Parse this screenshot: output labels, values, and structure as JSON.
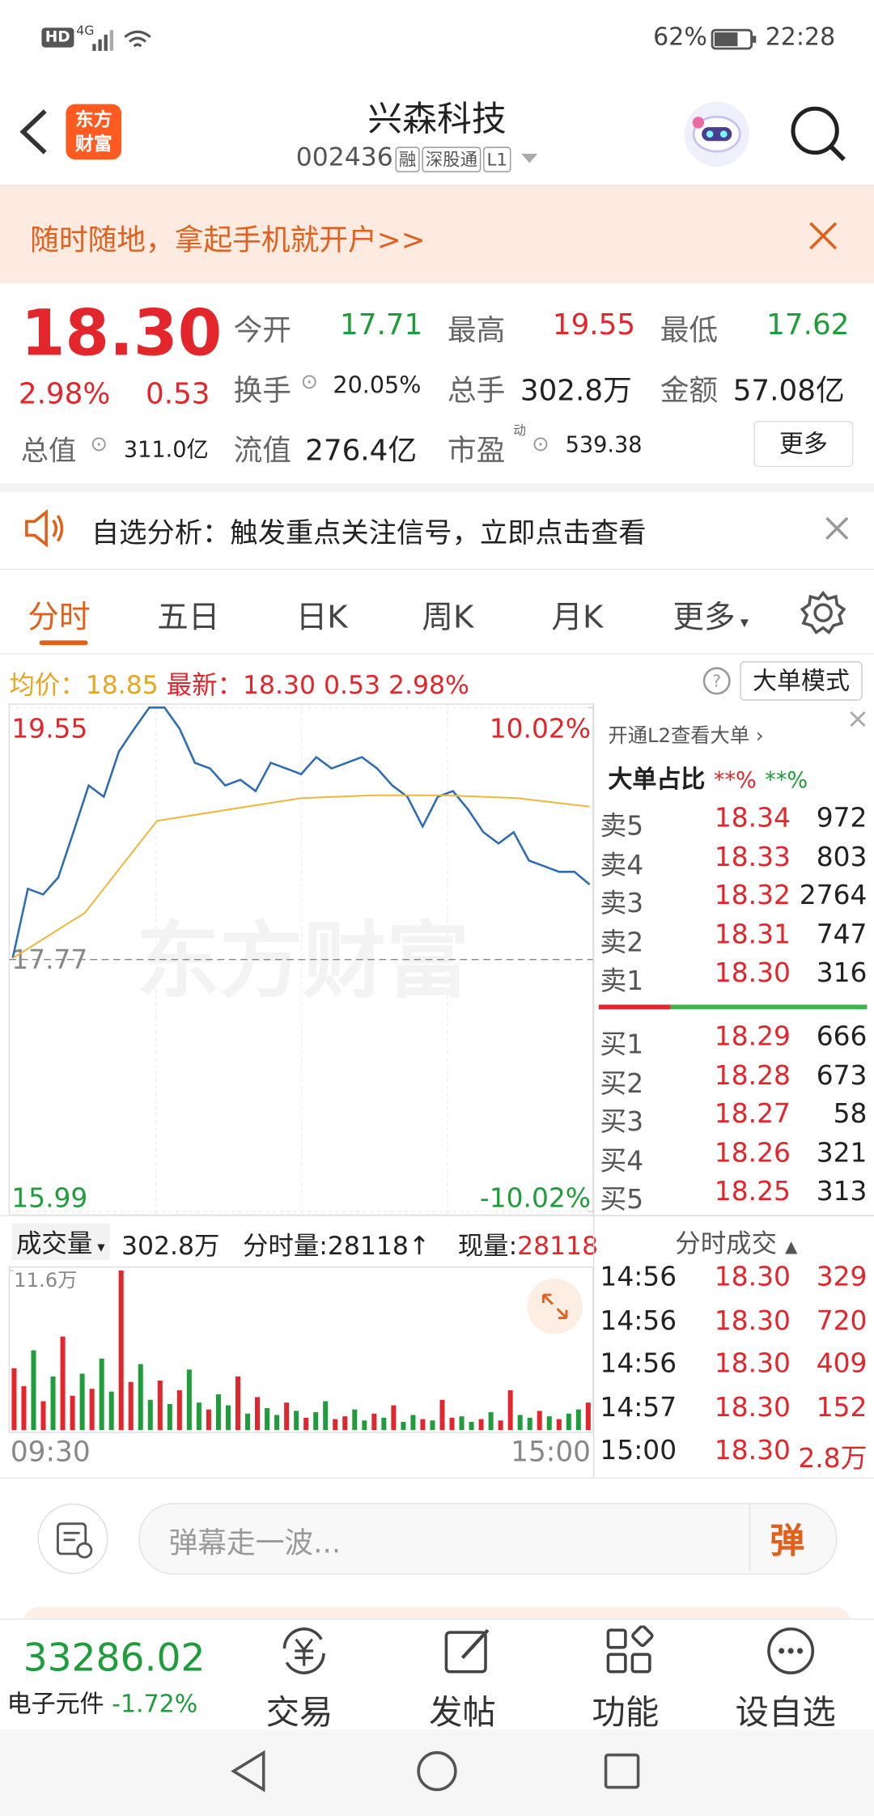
{
  "status_bar": {
    "hd": "HD",
    "network": "4G",
    "battery": "62%",
    "time": "22:28"
  },
  "header": {
    "logo_lines": [
      "东方",
      "财富"
    ],
    "title": "兴森科技",
    "code": "002436",
    "tags": [
      "融",
      "深股通",
      "L1"
    ]
  },
  "banner": {
    "text": "随时随地，拿起手机就开户>>"
  },
  "quote": {
    "price": "18.30",
    "change_pct": "2.98%",
    "change": "0.53",
    "fields": [
      {
        "label": "今开",
        "value": "17.71"
      },
      {
        "label": "最高",
        "value": "19.55"
      },
      {
        "label": "最低",
        "value": "17.62"
      },
      {
        "label": "换手",
        "value": "20.05%"
      },
      {
        "label": "总手",
        "value": "302.8万"
      },
      {
        "label": "金额",
        "value": "57.08亿"
      },
      {
        "label": "总值",
        "value": "311.0亿"
      },
      {
        "label": "流值",
        "value": "276.4亿"
      },
      {
        "label": "市盈",
        "value": "539.38"
      }
    ],
    "pe_mark": "动",
    "more": "更多"
  },
  "notice": {
    "text": "自选分析：触发重点关注信号，立即点击查看"
  },
  "tabs": [
    "分时",
    "五日",
    "日K",
    "周K",
    "月K",
    "更多"
  ],
  "info_line": {
    "avg_label": "均价：",
    "avg": "18.85",
    "latest_label": "最新：",
    "latest": "18.30",
    "change": "0.53",
    "change_pct": "2.98%",
    "mode": "大单模式"
  },
  "chart_data": [
    {
      "type": "line",
      "ylim": [
        15.99,
        19.55
      ],
      "yticks": [
        19.55,
        17.77,
        15.99
      ],
      "y2lim": [
        -10.02,
        10.02
      ],
      "y2ticks": [
        {
          "value": 10.02,
          "label": "10.02%"
        },
        {
          "value": -10.02,
          "label": "-10.02%"
        }
      ],
      "xticks": [
        "09:30",
        "15:00"
      ],
      "watermark": "东方财富",
      "series": [
        {
          "color": "#2f6db3",
          "values": [
            17.78,
            18.27,
            18.23,
            18.35,
            18.67,
            19.0,
            18.92,
            19.24,
            19.4,
            19.55,
            19.55,
            19.4,
            19.16,
            19.12,
            19.0,
            19.04,
            18.96,
            19.16,
            19.12,
            19.08,
            19.2,
            19.12,
            19.16,
            19.2,
            19.12,
            19.0,
            18.92,
            18.71,
            18.92,
            18.96,
            18.83,
            18.67,
            18.59,
            18.67,
            18.47,
            18.43,
            18.39,
            18.39,
            18.3
          ]
        },
        {
          "color": "#f0b63c",
          "values": [
            17.78,
            18.1,
            18.75,
            18.83,
            18.91,
            18.93,
            18.93,
            18.91,
            18.85
          ]
        }
      ]
    },
    {
      "type": "bar",
      "ylim": [
        0,
        11.6
      ],
      "yticks": [
        {
          "value": 11.6,
          "label": "11.6万"
        }
      ],
      "values": [
        4.5,
        3.2,
        5.8,
        2.1,
        3.9,
        6.8,
        2.5,
        4.1,
        3.0,
        5.2,
        2.8,
        11.6,
        3.5,
        4.8,
        2.2,
        3.6,
        1.9,
        2.9,
        4.4,
        2.0,
        1.5,
        2.6,
        1.8,
        3.9,
        1.2,
        2.4,
        1.6,
        1.1,
        2.0,
        1.4,
        0.9,
        1.3,
        2.1,
        0.8,
        1.0,
        1.5,
        0.7,
        1.2,
        0.9,
        1.8,
        0.6,
        1.1,
        0.8,
        0.7,
        2.2,
        0.9,
        1.0,
        0.6,
        0.8,
        1.3,
        0.7,
        2.9,
        1.1,
        0.9,
        1.4,
        1.0,
        0.8,
        1.2,
        1.5,
        2.0
      ],
      "colors": [
        "#e3262c",
        "#e3262c",
        "#1f9d3a",
        "#e3262c",
        "#1f9d3a",
        "#e3262c",
        "#e3262c",
        "#1f9d3a",
        "#e3262c",
        "#1f9d3a",
        "#1f9d3a",
        "#e3262c",
        "#e3262c",
        "#1f9d3a",
        "#1f9d3a",
        "#e3262c",
        "#1f9d3a",
        "#e3262c",
        "#1f9d3a",
        "#1f9d3a",
        "#e3262c",
        "#1f9d3a",
        "#1f9d3a",
        "#e3262c",
        "#1f9d3a",
        "#e3262c",
        "#1f9d3a",
        "#1f9d3a",
        "#e3262c",
        "#1f9d3a",
        "#e3262c",
        "#1f9d3a",
        "#1f9d3a",
        "#e3262c",
        "#e3262c",
        "#1f9d3a",
        "#1f9d3a",
        "#e3262c",
        "#1f9d3a",
        "#e3262c",
        "#1f9d3a",
        "#1f9d3a",
        "#e3262c",
        "#1f9d3a",
        "#e3262c",
        "#e3262c",
        "#1f9d3a",
        "#1f9d3a",
        "#e3262c",
        "#1f9d3a",
        "#e3262c",
        "#e3262c",
        "#1f9d3a",
        "#1f9d3a",
        "#e3262c",
        "#1f9d3a",
        "#e3262c",
        "#1f9d3a",
        "#1f9d3a",
        "#e3262c"
      ]
    }
  ],
  "volume_header": {
    "selector": "成交量",
    "total": "302.8万",
    "minute_label": "分时量:",
    "minute": "28118↑",
    "current_label": "现量:",
    "current": "28118"
  },
  "order_book": {
    "link": "开通L2查看大单",
    "big_order_label": "大单占比",
    "big_a": "**%",
    "big_b": "**%",
    "asks": [
      [
        "卖5",
        "18.34",
        "972"
      ],
      [
        "卖4",
        "18.33",
        "803"
      ],
      [
        "卖3",
        "18.32",
        "2764"
      ],
      [
        "卖2",
        "18.31",
        "747"
      ],
      [
        "卖1",
        "18.30",
        "316"
      ]
    ],
    "bids": [
      [
        "买1",
        "18.29",
        "666"
      ],
      [
        "买2",
        "18.28",
        "673"
      ],
      [
        "买3",
        "18.27",
        "58"
      ],
      [
        "买4",
        "18.26",
        "321"
      ],
      [
        "买5",
        "18.25",
        "313"
      ]
    ]
  },
  "trades": {
    "title": "分时成交",
    "rows": [
      [
        "14:56",
        "18.30",
        "329"
      ],
      [
        "14:56",
        "18.30",
        "720"
      ],
      [
        "14:56",
        "18.30",
        "409"
      ],
      [
        "14:57",
        "18.30",
        "152"
      ],
      [
        "15:00",
        "18.30",
        "2.8万"
      ]
    ]
  },
  "danmu": {
    "placeholder": "弹幕走一波...",
    "button": "弹"
  },
  "bottom_nav": {
    "index_value": "33286.02",
    "index_name": "电子元件",
    "index_change": "-1.72%",
    "items": [
      "交易",
      "发帖",
      "功能",
      "设自选"
    ]
  }
}
